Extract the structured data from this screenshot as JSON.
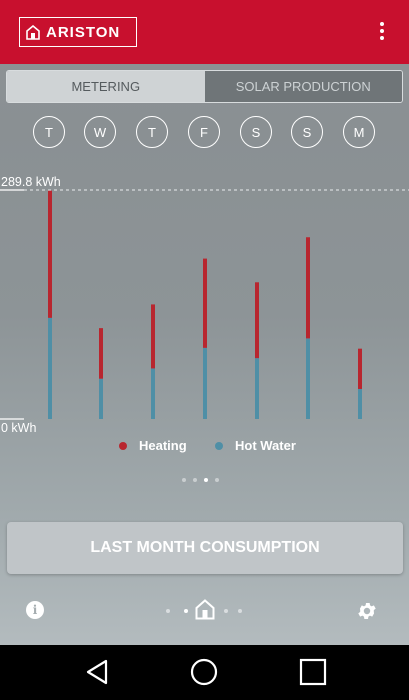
{
  "header": {
    "brand": "ARISTON",
    "bg_color": "#c8102e"
  },
  "tabs": [
    {
      "label": "METERING",
      "active": true
    },
    {
      "label": "SOLAR PRODUCTION",
      "active": false
    }
  ],
  "days": [
    "T",
    "W",
    "T",
    "F",
    "S",
    "S",
    "M"
  ],
  "chart": {
    "y_max_label": "289.8 kWh",
    "y_min_label": "0 kWh"
  },
  "chart_data": {
    "type": "bar",
    "stacked": true,
    "categories": [
      "T",
      "W",
      "T",
      "F",
      "S",
      "S",
      "M"
    ],
    "ylim": [
      0,
      289.8
    ],
    "series": [
      {
        "name": "Hot Water",
        "color": "#4f8fa6",
        "values": [
          128,
          51,
          64,
          90,
          77,
          102,
          38
        ]
      },
      {
        "name": "Heating",
        "color": "#b8262f",
        "values": [
          161,
          64,
          81,
          113,
          96,
          128,
          51
        ]
      }
    ]
  },
  "legend": [
    {
      "label": "Heating",
      "color": "#b8262f"
    },
    {
      "label": "Hot Water",
      "color": "#4f8fa6"
    }
  ],
  "pager": {
    "count": 4,
    "active": 2
  },
  "consumption_button": {
    "label": "LAST MONTH CONSUMPTION"
  },
  "bottom_nav": {
    "info_icon": "info-icon",
    "home_icon": "home-icon",
    "settings_icon": "gear-icon",
    "dots_count": 6,
    "active_index": 2
  }
}
